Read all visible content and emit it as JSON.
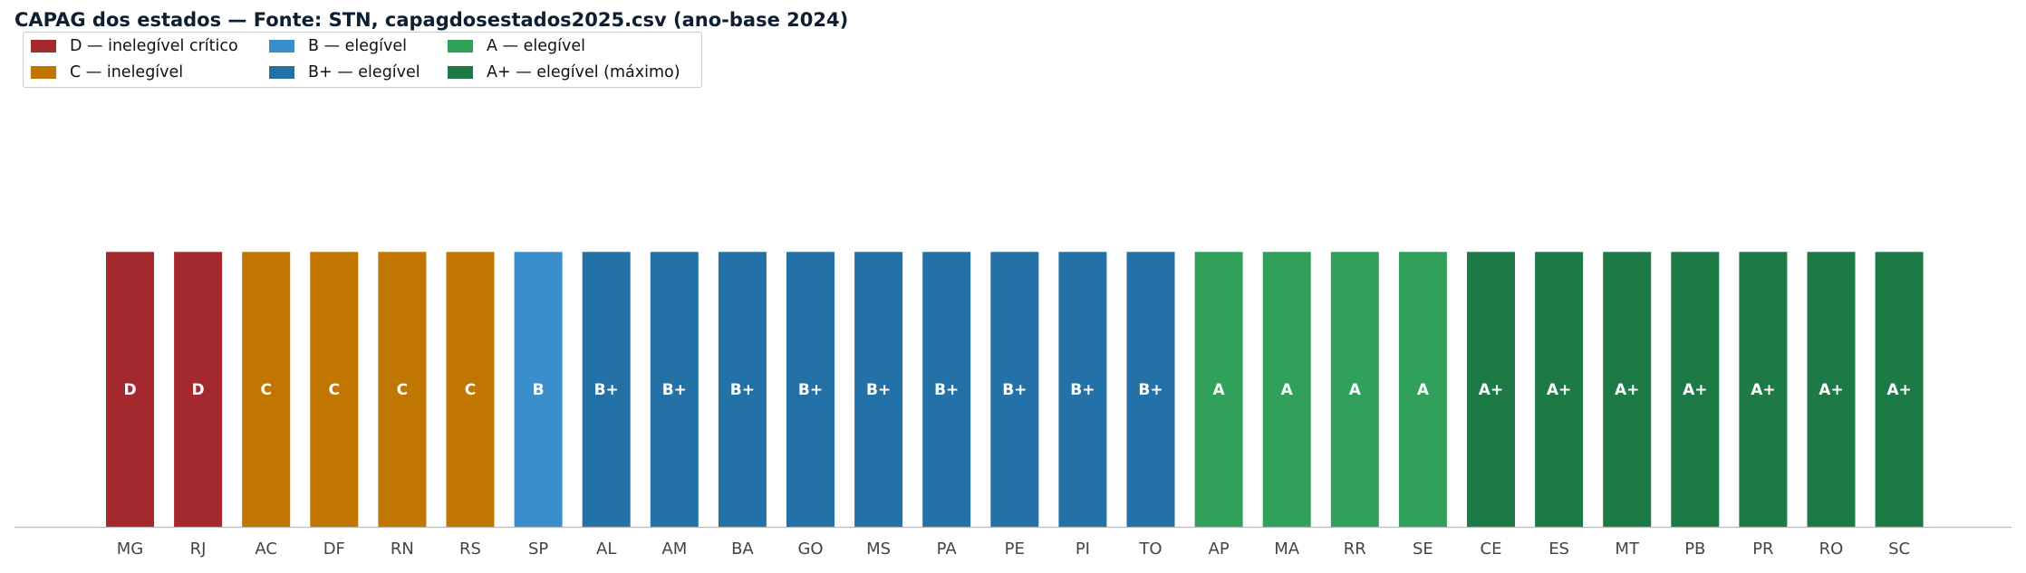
{
  "chart_data": {
    "type": "bar",
    "title": "CAPAG dos estados — Fonte: STN, capagdosestados2025.csv (ano-base 2024)",
    "xlabel": "",
    "ylabel": "",
    "legend_placement": "top-left",
    "grid": false,
    "legend": [
      {
        "key": "D",
        "label": "D — inelegível crítico",
        "color": "#a4292e"
      },
      {
        "key": "C",
        "label": "C — inelegível",
        "color": "#c07600"
      },
      {
        "key": "B",
        "label": "B — elegível",
        "color": "#3a8ecb"
      },
      {
        "key": "B+",
        "label": "B+ — elegível",
        "color": "#2371a6"
      },
      {
        "key": "A",
        "label": "A — elegível",
        "color": "#30a05b"
      },
      {
        "key": "A+",
        "label": "A+ — elegível (máximo)",
        "color": "#1d7a46"
      }
    ],
    "categories": [
      "MG",
      "RJ",
      "AC",
      "DF",
      "RN",
      "RS",
      "SP",
      "AL",
      "AM",
      "BA",
      "GO",
      "MS",
      "PA",
      "PE",
      "PI",
      "TO",
      "AP",
      "MA",
      "RR",
      "SE",
      "CE",
      "ES",
      "MT",
      "PB",
      "PR",
      "RO",
      "SC"
    ],
    "ratings": [
      "D",
      "D",
      "C",
      "C",
      "C",
      "C",
      "B",
      "B+",
      "B+",
      "B+",
      "B+",
      "B+",
      "B+",
      "B+",
      "B+",
      "B+",
      "A",
      "A",
      "A",
      "A",
      "A+",
      "A+",
      "A+",
      "A+",
      "A+",
      "A+",
      "A+"
    ],
    "values": [
      1,
      1,
      1,
      1,
      1,
      1,
      1,
      1,
      1,
      1,
      1,
      1,
      1,
      1,
      1,
      1,
      1,
      1,
      1,
      1,
      1,
      1,
      1,
      1,
      1,
      1,
      1
    ],
    "ylim": [
      0,
      1.9
    ]
  }
}
